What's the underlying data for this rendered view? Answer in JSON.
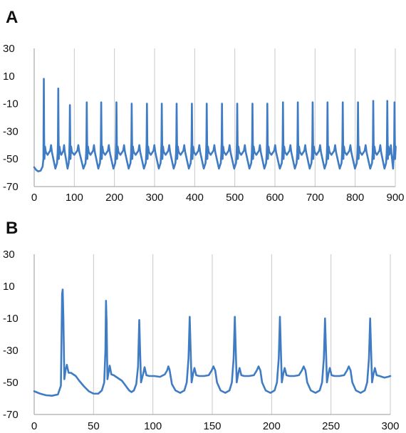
{
  "colors": {
    "trace": "#3f7cc3"
  },
  "chart_data": [
    {
      "type": "line",
      "panel_label": "A",
      "title": "",
      "xlabel": "",
      "ylabel": "",
      "xlim": [
        0,
        900
      ],
      "ylim": [
        -70,
        30
      ],
      "x_ticks": [
        0,
        100,
        200,
        300,
        400,
        500,
        600,
        700,
        800,
        900
      ],
      "y_ticks": [
        -70,
        -50,
        -30,
        -10,
        10,
        30
      ],
      "grid": "vertical",
      "legend": "none",
      "baseline_start": -56,
      "spike_times": [
        24,
        60,
        89,
        131,
        167,
        205,
        243,
        281,
        318,
        355,
        393,
        430,
        468,
        506,
        544,
        581,
        620,
        657,
        694,
        731,
        769,
        807,
        845,
        880,
        898
      ],
      "spike_peaks": [
        8,
        1,
        -11,
        -9,
        -9,
        -9,
        -10,
        -10,
        -10,
        -10,
        -10,
        -10,
        -10,
        -10,
        -10,
        -10,
        -9,
        -9,
        -9,
        -9,
        -9,
        -9,
        -8,
        -8,
        -9
      ],
      "interspike_min": -57
    },
    {
      "type": "line",
      "panel_label": "B",
      "title": "",
      "xlabel": "",
      "ylabel": "",
      "xlim": [
        0,
        300
      ],
      "ylim": [
        -70,
        30
      ],
      "x_ticks": [
        0,
        50,
        100,
        150,
        200,
        250,
        300
      ],
      "y_ticks": [
        -70,
        -50,
        -30,
        -10,
        10,
        30
      ],
      "grid": "vertical",
      "legend": "none",
      "points": [
        [
          0,
          -55.5
        ],
        [
          5,
          -57
        ],
        [
          10,
          -58
        ],
        [
          15,
          -58.3
        ],
        [
          20,
          -57.5
        ],
        [
          22.5,
          -52
        ],
        [
          23.5,
          5
        ],
        [
          24,
          8
        ],
        [
          24.6,
          -10
        ],
        [
          25.4,
          -48
        ],
        [
          26.5,
          -42
        ],
        [
          27.5,
          -39
        ],
        [
          29,
          -44
        ],
        [
          31,
          -44
        ],
        [
          35,
          -46
        ],
        [
          38,
          -49
        ],
        [
          42,
          -52.5
        ],
        [
          46,
          -55.5
        ],
        [
          50,
          -57
        ],
        [
          54,
          -57
        ],
        [
          57,
          -55
        ],
        [
          59,
          -50
        ],
        [
          60,
          -30
        ],
        [
          60.5,
          1
        ],
        [
          61,
          -12
        ],
        [
          61.7,
          -48
        ],
        [
          62.6,
          -44
        ],
        [
          63.6,
          -39.5
        ],
        [
          65,
          -45
        ],
        [
          67,
          -45.5
        ],
        [
          70,
          -47
        ],
        [
          74,
          -49
        ],
        [
          77,
          -52
        ],
        [
          80,
          -55
        ],
        [
          82,
          -56
        ],
        [
          84,
          -55
        ],
        [
          86,
          -51
        ],
        [
          87.5,
          -40
        ],
        [
          88.5,
          -11
        ],
        [
          89.2,
          -30
        ],
        [
          90,
          -50
        ],
        [
          92,
          -44
        ],
        [
          93,
          -40.5
        ],
        [
          94.5,
          -45.5
        ],
        [
          97,
          -46
        ],
        [
          101,
          -46
        ],
        [
          106,
          -46.5
        ],
        [
          110,
          -45
        ],
        [
          112,
          -42.5
        ],
        [
          113,
          -40
        ],
        [
          114,
          -42
        ],
        [
          116,
          -51
        ],
        [
          119,
          -55
        ],
        [
          123,
          -56.5
        ],
        [
          126.5,
          -55
        ],
        [
          128.5,
          -50
        ],
        [
          130,
          -35
        ],
        [
          131,
          -9
        ],
        [
          131.8,
          -30
        ],
        [
          132.6,
          -50
        ],
        [
          134,
          -44
        ],
        [
          135,
          -41
        ],
        [
          136.5,
          -45.5
        ],
        [
          139,
          -46
        ],
        [
          143,
          -46
        ],
        [
          147,
          -45.5
        ],
        [
          149.5,
          -42.5
        ],
        [
          151,
          -40
        ],
        [
          152.5,
          -42.5
        ],
        [
          154,
          -50
        ],
        [
          157,
          -55
        ],
        [
          161,
          -56.5
        ],
        [
          164.5,
          -55
        ],
        [
          166.5,
          -50
        ],
        [
          168,
          -35
        ],
        [
          169,
          -9
        ],
        [
          169.8,
          -30
        ],
        [
          170.6,
          -50
        ],
        [
          172,
          -44
        ],
        [
          173,
          -41
        ],
        [
          174.5,
          -45.5
        ],
        [
          177,
          -46
        ],
        [
          181,
          -46
        ],
        [
          185,
          -45.5
        ],
        [
          187.5,
          -42.5
        ],
        [
          189,
          -40
        ],
        [
          190.5,
          -42.5
        ],
        [
          192,
          -50
        ],
        [
          195,
          -55
        ],
        [
          199,
          -56.5
        ],
        [
          202.5,
          -55
        ],
        [
          204.5,
          -50
        ],
        [
          206,
          -35
        ],
        [
          207,
          -9
        ],
        [
          207.8,
          -30
        ],
        [
          208.6,
          -50
        ],
        [
          210,
          -44
        ],
        [
          211,
          -41
        ],
        [
          212.5,
          -45.5
        ],
        [
          215,
          -46
        ],
        [
          219,
          -46
        ],
        [
          223,
          -45.5
        ],
        [
          225.5,
          -42.5
        ],
        [
          227,
          -40
        ],
        [
          228.5,
          -42.5
        ],
        [
          230,
          -50
        ],
        [
          233,
          -55
        ],
        [
          237,
          -56.5
        ],
        [
          240.5,
          -55
        ],
        [
          242.5,
          -50
        ],
        [
          244,
          -35
        ],
        [
          245,
          -10
        ],
        [
          245.8,
          -30
        ],
        [
          246.6,
          -50
        ],
        [
          248,
          -44
        ],
        [
          249,
          -41
        ],
        [
          250.5,
          -45.5
        ],
        [
          253,
          -46
        ],
        [
          257,
          -46
        ],
        [
          261,
          -45.5
        ],
        [
          263.5,
          -42.5
        ],
        [
          265,
          -40
        ],
        [
          266.5,
          -42.5
        ],
        [
          268,
          -50
        ],
        [
          271,
          -55
        ],
        [
          275,
          -56.5
        ],
        [
          278.5,
          -55
        ],
        [
          280.5,
          -50
        ],
        [
          282,
          -35
        ],
        [
          283,
          -10
        ],
        [
          283.8,
          -30
        ],
        [
          284.6,
          -50
        ],
        [
          286,
          -44
        ],
        [
          287,
          -41
        ],
        [
          288.5,
          -45.5
        ],
        [
          291,
          -46
        ],
        [
          295,
          -47
        ],
        [
          298,
          -46.5
        ],
        [
          300,
          -46
        ]
      ]
    }
  ]
}
